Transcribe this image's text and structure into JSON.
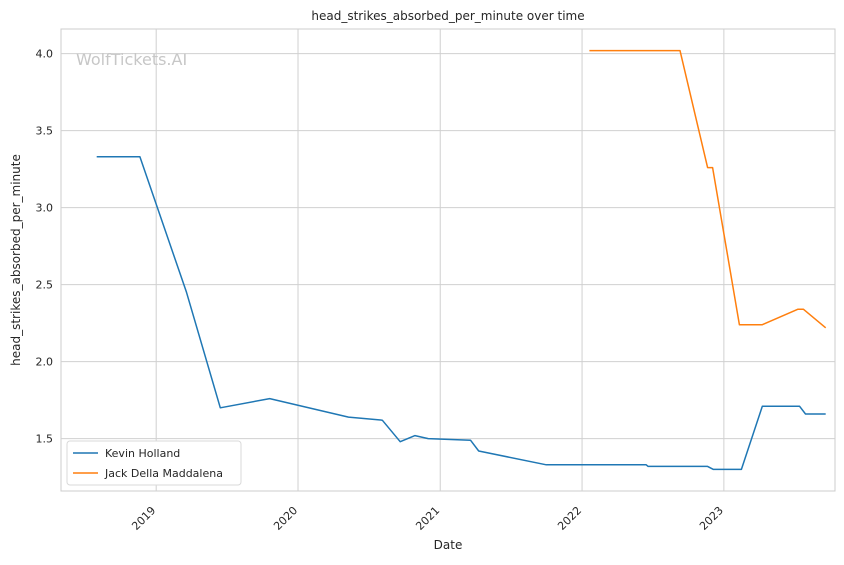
{
  "chart_data": {
    "type": "line",
    "title": "head_strikes_absorbed_per_minute over time",
    "xlabel": "Date",
    "ylabel": "head_strikes_absorbed_per_minute",
    "watermark": "WolfTickets.AI",
    "x_ticks": [
      "2019",
      "2020",
      "2021",
      "2022",
      "2023"
    ],
    "y_ticks": [
      "1.5",
      "2.0",
      "2.5",
      "3.0",
      "3.5",
      "4.0"
    ],
    "xlim": [
      "2018-05-01",
      "2023-10-14"
    ],
    "ylim": [
      1.16,
      4.16
    ],
    "grid": true,
    "legend_position": "lower-left",
    "series": [
      {
        "name": "Kevin Holland",
        "color": "#1f77b4",
        "points": [
          [
            "2018-08-01",
            3.33
          ],
          [
            "2018-11-20",
            3.33
          ],
          [
            "2019-03-20",
            2.45
          ],
          [
            "2019-06-15",
            1.7
          ],
          [
            "2019-10-20",
            1.76
          ],
          [
            "2020-05-10",
            1.64
          ],
          [
            "2020-08-05",
            1.62
          ],
          [
            "2020-09-20",
            1.48
          ],
          [
            "2020-10-28",
            1.52
          ],
          [
            "2020-12-01",
            1.5
          ],
          [
            "2021-03-20",
            1.49
          ],
          [
            "2021-04-10",
            1.42
          ],
          [
            "2021-10-01",
            1.33
          ],
          [
            "2022-06-15",
            1.33
          ],
          [
            "2022-06-20",
            1.32
          ],
          [
            "2022-08-25",
            1.32
          ],
          [
            "2022-11-20",
            1.32
          ],
          [
            "2022-12-05",
            1.3
          ],
          [
            "2023-02-15",
            1.3
          ],
          [
            "2023-04-10",
            1.71
          ],
          [
            "2023-07-15",
            1.71
          ],
          [
            "2023-07-30",
            1.66
          ],
          [
            "2023-09-20",
            1.66
          ]
        ]
      },
      {
        "name": "Jack Della Maddalena",
        "color": "#ff7f0e",
        "points": [
          [
            "2022-01-20",
            4.02
          ],
          [
            "2022-09-10",
            4.02
          ],
          [
            "2022-11-20",
            3.26
          ],
          [
            "2022-12-03",
            3.26
          ],
          [
            "2023-02-10",
            2.24
          ],
          [
            "2023-04-10",
            2.24
          ],
          [
            "2023-07-10",
            2.34
          ],
          [
            "2023-07-25",
            2.34
          ],
          [
            "2023-09-20",
            2.22
          ]
        ]
      }
    ]
  }
}
